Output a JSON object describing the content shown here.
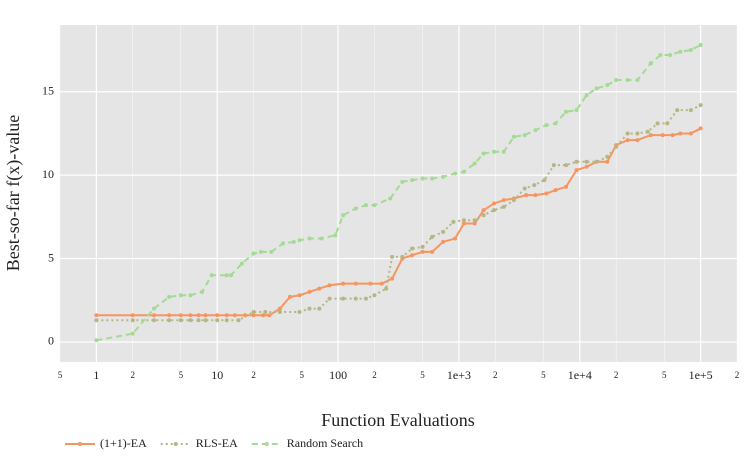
{
  "chart_data": {
    "type": "line",
    "x_label": "Function Evaluations",
    "y_label": "Best-so-far f(x)-value",
    "xscale": "log",
    "xlim": [
      0.5,
      200000
    ],
    "ylim": [
      -1.2,
      19
    ],
    "xticks": [
      {
        "value": 0.5,
        "label": "5"
      },
      1,
      {
        "value": 2,
        "label": "2"
      },
      {
        "value": 5,
        "label": "5"
      },
      10,
      {
        "value": 20,
        "label": "2"
      },
      {
        "value": 50,
        "label": "5"
      },
      100,
      {
        "value": 200,
        "label": "2"
      },
      {
        "value": 500,
        "label": "5"
      },
      {
        "value": 1000,
        "label": "1e+3"
      },
      {
        "value": 2000,
        "label": "2"
      },
      {
        "value": 5000,
        "label": "5"
      },
      {
        "value": 10000,
        "label": "1e+4"
      },
      {
        "value": 20000,
        "label": "2"
      },
      {
        "value": 50000,
        "label": "5"
      },
      {
        "value": 100000,
        "label": "1e+5"
      },
      {
        "value": 200000,
        "label": "2"
      }
    ],
    "yticks": [
      0,
      5,
      10,
      15
    ],
    "grid": true,
    "legend": "bottom-left",
    "series": [
      {
        "name": "(1+1)-EA",
        "color": "#f79560",
        "dash": "solid",
        "x": [
          1,
          2,
          3,
          4,
          5,
          6,
          7,
          8,
          10,
          12,
          14,
          17,
          20,
          24,
          27,
          33,
          40,
          48,
          58,
          70,
          85,
          110,
          140,
          185,
          230,
          280,
          340,
          410,
          500,
          600,
          740,
          930,
          1100,
          1350,
          1600,
          1950,
          2350,
          2850,
          3600,
          4300,
          5300,
          6300,
          7700,
          9400,
          11400,
          13800,
          16900,
          20000,
          24900,
          30000,
          38700,
          48500,
          58700,
          68000,
          83000,
          100000
        ],
        "values": [
          1.6,
          1.6,
          1.6,
          1.6,
          1.6,
          1.6,
          1.6,
          1.6,
          1.6,
          1.6,
          1.6,
          1.6,
          1.6,
          1.6,
          1.6,
          2.0,
          2.7,
          2.8,
          3.0,
          3.2,
          3.4,
          3.5,
          3.5,
          3.5,
          3.5,
          3.8,
          5.0,
          5.2,
          5.4,
          5.4,
          6.0,
          6.2,
          7.1,
          7.1,
          7.9,
          8.3,
          8.5,
          8.6,
          8.8,
          8.8,
          8.9,
          9.1,
          9.3,
          10.3,
          10.5,
          10.8,
          10.8,
          11.8,
          12.1,
          12.1,
          12.4,
          12.4,
          12.4,
          12.5,
          12.5,
          12.8
        ]
      },
      {
        "name": "RLS-EA",
        "color": "#b5b586",
        "dash": "dot",
        "x": [
          1,
          2,
          3,
          4,
          5,
          6,
          7,
          8,
          10,
          12,
          15,
          20,
          25,
          33,
          48,
          58,
          70,
          85,
          110,
          140,
          170,
          200,
          250,
          280,
          340,
          410,
          500,
          600,
          740,
          900,
          1100,
          1350,
          1600,
          1950,
          2350,
          2850,
          3500,
          4200,
          5100,
          6100,
          7700,
          9400,
          11400,
          13800,
          16900,
          20000,
          24900,
          30000,
          36500,
          44000,
          53000,
          64000,
          83000,
          100000
        ],
        "values": [
          1.3,
          1.3,
          1.3,
          1.3,
          1.3,
          1.3,
          1.3,
          1.3,
          1.3,
          1.3,
          1.3,
          1.8,
          1.8,
          1.8,
          1.8,
          2.0,
          2.0,
          2.6,
          2.6,
          2.6,
          2.6,
          2.8,
          3.2,
          5.1,
          5.1,
          5.6,
          5.7,
          6.3,
          6.6,
          7.2,
          7.3,
          7.3,
          7.6,
          7.9,
          8.1,
          8.5,
          9.2,
          9.4,
          9.7,
          10.6,
          10.6,
          10.8,
          10.8,
          10.8,
          11.1,
          11.7,
          12.5,
          12.5,
          12.6,
          13.1,
          13.1,
          13.9,
          13.9,
          14.2
        ]
      },
      {
        "name": "Random Search",
        "color": "#a3da94",
        "dash": "dash",
        "x": [
          1,
          2,
          3,
          4,
          5,
          6,
          7.5,
          9,
          12,
          13,
          16,
          20,
          23,
          28,
          35,
          43,
          48,
          58,
          73,
          95,
          110,
          140,
          170,
          200,
          270,
          340,
          410,
          500,
          600,
          740,
          930,
          1100,
          1350,
          1600,
          1950,
          2350,
          2850,
          3500,
          4300,
          5300,
          6300,
          7700,
          9400,
          11400,
          13800,
          16900,
          20000,
          24900,
          30000,
          38700,
          46500,
          56000,
          68000,
          83000,
          100000
        ],
        "values": [
          0.1,
          0.5,
          2.0,
          2.7,
          2.8,
          2.8,
          3.0,
          4.0,
          4.0,
          4.0,
          4.7,
          5.3,
          5.4,
          5.4,
          5.9,
          6.0,
          6.1,
          6.2,
          6.2,
          6.4,
          7.6,
          8.0,
          8.2,
          8.2,
          8.6,
          9.6,
          9.7,
          9.8,
          9.8,
          9.9,
          10.1,
          10.2,
          10.7,
          11.3,
          11.4,
          11.4,
          12.3,
          12.4,
          12.7,
          13.0,
          13.1,
          13.8,
          13.9,
          14.8,
          15.2,
          15.4,
          15.7,
          15.7,
          15.7,
          16.7,
          17.2,
          17.2,
          17.4,
          17.5,
          17.8
        ]
      }
    ]
  }
}
